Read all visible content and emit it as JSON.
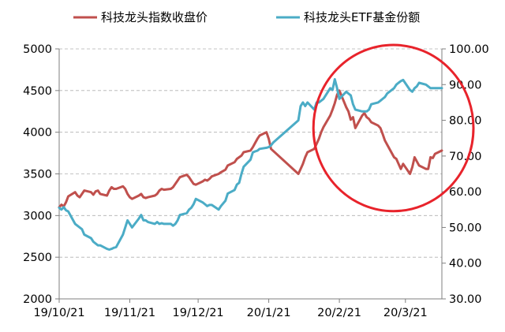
{
  "chart_data": {
    "type": "line",
    "dual_axis": true,
    "legend": {
      "placement": "top",
      "entries": [
        {
          "name": "科技龙头指数收盘价",
          "color": "#c0504d"
        },
        {
          "name": "科技龙头ETF基金份额",
          "color": "#4bacc6"
        }
      ]
    },
    "x_ticks": [
      "19/10/21",
      "19/11/21",
      "19/12/21",
      "20/1/21",
      "20/2/21",
      "20/3/21"
    ],
    "x_range": [
      "2019-10-21",
      "2020-04-06"
    ],
    "y_left": {
      "ylim": [
        2000,
        5000
      ],
      "ticks": [
        "2000",
        "2500",
        "3000",
        "3500",
        "4000",
        "4500",
        "5000"
      ]
    },
    "y_right": {
      "ylim": [
        30,
        100
      ],
      "ticks": [
        "30.00",
        "40.00",
        "50.00",
        "60.00",
        "70.00",
        "80.00",
        "90.00",
        "100.00"
      ]
    },
    "grid": {
      "horizontal": true,
      "style": "dashed"
    },
    "annotation": {
      "shape": "ellipse",
      "color": "#e8232b",
      "region_x": [
        "2020-02-20",
        "2020-04-06"
      ],
      "region_y_right": [
        57,
        100
      ]
    },
    "series": [
      {
        "name": "科技龙头指数收盘价",
        "axis": "left",
        "color": "#c0504d",
        "points": [
          [
            "2019-10-21",
            3100
          ],
          [
            "2019-10-22",
            3130
          ],
          [
            "2019-10-23",
            3110
          ],
          [
            "2019-10-24",
            3160
          ],
          [
            "2019-10-25",
            3230
          ],
          [
            "2019-10-28",
            3280
          ],
          [
            "2019-10-29",
            3240
          ],
          [
            "2019-10-30",
            3220
          ],
          [
            "2019-10-31",
            3260
          ],
          [
            "2019-11-01",
            3300
          ],
          [
            "2019-11-04",
            3280
          ],
          [
            "2019-11-05",
            3250
          ],
          [
            "2019-11-06",
            3290
          ],
          [
            "2019-11-07",
            3300
          ],
          [
            "2019-11-08",
            3260
          ],
          [
            "2019-11-11",
            3240
          ],
          [
            "2019-11-12",
            3300
          ],
          [
            "2019-11-13",
            3340
          ],
          [
            "2019-11-14",
            3320
          ],
          [
            "2019-11-15",
            3320
          ],
          [
            "2019-11-18",
            3350
          ],
          [
            "2019-11-19",
            3320
          ],
          [
            "2019-11-20",
            3260
          ],
          [
            "2019-11-21",
            3220
          ],
          [
            "2019-11-22",
            3200
          ],
          [
            "2019-11-25",
            3240
          ],
          [
            "2019-11-26",
            3260
          ],
          [
            "2019-11-27",
            3220
          ],
          [
            "2019-11-28",
            3210
          ],
          [
            "2019-11-29",
            3220
          ],
          [
            "2019-12-02",
            3240
          ],
          [
            "2019-12-03",
            3260
          ],
          [
            "2019-12-04",
            3300
          ],
          [
            "2019-12-05",
            3320
          ],
          [
            "2019-12-06",
            3310
          ],
          [
            "2019-12-09",
            3320
          ],
          [
            "2019-12-10",
            3340
          ],
          [
            "2019-12-11",
            3380
          ],
          [
            "2019-12-12",
            3420
          ],
          [
            "2019-12-13",
            3460
          ],
          [
            "2019-12-16",
            3490
          ],
          [
            "2019-12-17",
            3460
          ],
          [
            "2019-12-18",
            3420
          ],
          [
            "2019-12-19",
            3380
          ],
          [
            "2019-12-20",
            3370
          ],
          [
            "2019-12-23",
            3410
          ],
          [
            "2019-12-24",
            3430
          ],
          [
            "2019-12-25",
            3420
          ],
          [
            "2019-12-26",
            3440
          ],
          [
            "2019-12-27",
            3470
          ],
          [
            "2019-12-30",
            3500
          ],
          [
            "2019-12-31",
            3520
          ],
          [
            "2020-01-02",
            3550
          ],
          [
            "2020-01-03",
            3600
          ],
          [
            "2020-01-06",
            3640
          ],
          [
            "2020-01-07",
            3680
          ],
          [
            "2020-01-08",
            3700
          ],
          [
            "2020-01-09",
            3720
          ],
          [
            "2020-01-10",
            3760
          ],
          [
            "2020-01-13",
            3780
          ],
          [
            "2020-01-14",
            3820
          ],
          [
            "2020-01-15",
            3870
          ],
          [
            "2020-01-16",
            3920
          ],
          [
            "2020-01-17",
            3960
          ],
          [
            "2020-01-20",
            4000
          ],
          [
            "2020-01-21",
            3920
          ],
          [
            "2020-01-22",
            3800
          ],
          [
            "2020-02-03",
            3500
          ],
          [
            "2020-02-04",
            3560
          ],
          [
            "2020-02-05",
            3620
          ],
          [
            "2020-02-06",
            3700
          ],
          [
            "2020-02-07",
            3760
          ],
          [
            "2020-02-10",
            3800
          ],
          [
            "2020-02-11",
            3860
          ],
          [
            "2020-02-12",
            3920
          ],
          [
            "2020-02-13",
            4000
          ],
          [
            "2020-02-14",
            4060
          ],
          [
            "2020-02-17",
            4200
          ],
          [
            "2020-02-18",
            4270
          ],
          [
            "2020-02-19",
            4350
          ],
          [
            "2020-02-20",
            4450
          ],
          [
            "2020-02-21",
            4500
          ],
          [
            "2020-02-24",
            4300
          ],
          [
            "2020-02-25",
            4250
          ],
          [
            "2020-02-26",
            4150
          ],
          [
            "2020-02-27",
            4180
          ],
          [
            "2020-02-28",
            4050
          ],
          [
            "2020-03-02",
            4200
          ],
          [
            "2020-03-03",
            4230
          ],
          [
            "2020-03-04",
            4180
          ],
          [
            "2020-03-05",
            4160
          ],
          [
            "2020-03-06",
            4120
          ],
          [
            "2020-03-09",
            4080
          ],
          [
            "2020-03-10",
            4050
          ],
          [
            "2020-03-11",
            3980
          ],
          [
            "2020-03-12",
            3900
          ],
          [
            "2020-03-13",
            3850
          ],
          [
            "2020-03-16",
            3700
          ],
          [
            "2020-03-17",
            3680
          ],
          [
            "2020-03-18",
            3620
          ],
          [
            "2020-03-19",
            3560
          ],
          [
            "2020-03-20",
            3620
          ],
          [
            "2020-03-23",
            3500
          ],
          [
            "2020-03-24",
            3580
          ],
          [
            "2020-03-25",
            3700
          ],
          [
            "2020-03-26",
            3650
          ],
          [
            "2020-03-27",
            3600
          ],
          [
            "2020-03-30",
            3560
          ],
          [
            "2020-03-31",
            3560
          ],
          [
            "2020-04-01",
            3700
          ],
          [
            "2020-04-02",
            3690
          ],
          [
            "2020-04-03",
            3740
          ],
          [
            "2020-04-06",
            3780
          ]
        ]
      },
      {
        "name": "科技龙头ETF基金份额",
        "axis": "right",
        "color": "#4bacc6",
        "points": [
          [
            "2019-10-21",
            55.5
          ],
          [
            "2019-10-22",
            55.0
          ],
          [
            "2019-10-23",
            55.7
          ],
          [
            "2019-10-24",
            54.8
          ],
          [
            "2019-10-25",
            54.5
          ],
          [
            "2019-10-28",
            51.0
          ],
          [
            "2019-10-29",
            50.5
          ],
          [
            "2019-10-30",
            50.0
          ],
          [
            "2019-10-31",
            49.5
          ],
          [
            "2019-11-01",
            48.0
          ],
          [
            "2019-11-04",
            47.0
          ],
          [
            "2019-11-05",
            46.0
          ],
          [
            "2019-11-06",
            45.5
          ],
          [
            "2019-11-07",
            45.0
          ],
          [
            "2019-11-08",
            45.0
          ],
          [
            "2019-11-11",
            44.0
          ],
          [
            "2019-11-12",
            43.8
          ],
          [
            "2019-11-13",
            44.0
          ],
          [
            "2019-11-14",
            44.3
          ],
          [
            "2019-11-15",
            44.5
          ],
          [
            "2019-11-18",
            48.0
          ],
          [
            "2019-11-19",
            50.0
          ],
          [
            "2019-11-20",
            52.0
          ],
          [
            "2019-11-21",
            51.0
          ],
          [
            "2019-11-22",
            50.0
          ],
          [
            "2019-11-25",
            52.5
          ],
          [
            "2019-11-26",
            53.5
          ],
          [
            "2019-11-27",
            52.0
          ],
          [
            "2019-11-28",
            52.0
          ],
          [
            "2019-11-29",
            51.5
          ],
          [
            "2019-12-02",
            51.0
          ],
          [
            "2019-12-03",
            51.5
          ],
          [
            "2019-12-04",
            51.0
          ],
          [
            "2019-12-05",
            51.2
          ],
          [
            "2019-12-06",
            51.0
          ],
          [
            "2019-12-09",
            51.0
          ],
          [
            "2019-12-10",
            50.5
          ],
          [
            "2019-12-11",
            51.0
          ],
          [
            "2019-12-12",
            52.0
          ],
          [
            "2019-12-13",
            53.5
          ],
          [
            "2019-12-16",
            54.0
          ],
          [
            "2019-12-17",
            55.0
          ],
          [
            "2019-12-18",
            55.5
          ],
          [
            "2019-12-19",
            56.5
          ],
          [
            "2019-12-20",
            58.0
          ],
          [
            "2019-12-23",
            57.0
          ],
          [
            "2019-12-24",
            56.5
          ],
          [
            "2019-12-25",
            56.0
          ],
          [
            "2019-12-26",
            56.3
          ],
          [
            "2019-12-27",
            56.3
          ],
          [
            "2019-12-30",
            55.0
          ],
          [
            "2019-12-31",
            56.0
          ],
          [
            "2020-01-02",
            57.5
          ],
          [
            "2020-01-03",
            59.5
          ],
          [
            "2020-01-06",
            60.5
          ],
          [
            "2020-01-07",
            62.0
          ],
          [
            "2020-01-08",
            62.5
          ],
          [
            "2020-01-09",
            65.0
          ],
          [
            "2020-01-10",
            67.0
          ],
          [
            "2020-01-13",
            69.0
          ],
          [
            "2020-01-14",
            71.0
          ],
          [
            "2020-01-15",
            71.3
          ],
          [
            "2020-01-16",
            71.5
          ],
          [
            "2020-01-17",
            72.0
          ],
          [
            "2020-01-20",
            72.3
          ],
          [
            "2020-01-21",
            72.5
          ],
          [
            "2020-01-22",
            73.0
          ],
          [
            "2020-01-23",
            73.8
          ],
          [
            "2020-02-03",
            80.0
          ],
          [
            "2020-02-04",
            84.0
          ],
          [
            "2020-02-05",
            85.0
          ],
          [
            "2020-02-06",
            84.0
          ],
          [
            "2020-02-07",
            85.0
          ],
          [
            "2020-02-10",
            83.0
          ],
          [
            "2020-02-11",
            85.0
          ],
          [
            "2020-02-12",
            85.0
          ],
          [
            "2020-02-13",
            85.5
          ],
          [
            "2020-02-14",
            86.0
          ],
          [
            "2020-02-17",
            89.0
          ],
          [
            "2020-02-18",
            88.5
          ],
          [
            "2020-02-19",
            91.5
          ],
          [
            "2020-02-20",
            89.0
          ],
          [
            "2020-02-21",
            86.0
          ],
          [
            "2020-02-24",
            88.0
          ],
          [
            "2020-02-25",
            87.5
          ],
          [
            "2020-02-26",
            87.0
          ],
          [
            "2020-02-27",
            84.5
          ],
          [
            "2020-02-28",
            83.0
          ],
          [
            "2020-03-02",
            82.5
          ],
          [
            "2020-03-03",
            82.5
          ],
          [
            "2020-03-04",
            82.5
          ],
          [
            "2020-03-05",
            83.0
          ],
          [
            "2020-03-06",
            84.5
          ],
          [
            "2020-03-09",
            85.0
          ],
          [
            "2020-03-10",
            85.5
          ],
          [
            "2020-03-11",
            86.0
          ],
          [
            "2020-03-12",
            86.5
          ],
          [
            "2020-03-13",
            87.5
          ],
          [
            "2020-03-16",
            89.0
          ],
          [
            "2020-03-17",
            90.0
          ],
          [
            "2020-03-18",
            90.5
          ],
          [
            "2020-03-19",
            91.0
          ],
          [
            "2020-03-20",
            91.3
          ],
          [
            "2020-03-23",
            88.5
          ],
          [
            "2020-03-24",
            88.0
          ],
          [
            "2020-03-25",
            89.0
          ],
          [
            "2020-03-26",
            89.5
          ],
          [
            "2020-03-27",
            90.5
          ],
          [
            "2020-03-30",
            90.0
          ],
          [
            "2020-03-31",
            89.5
          ],
          [
            "2020-04-01",
            89.0
          ],
          [
            "2020-04-02",
            89.0
          ],
          [
            "2020-04-03",
            89.0
          ],
          [
            "2020-04-06",
            89.0
          ]
        ]
      }
    ]
  }
}
